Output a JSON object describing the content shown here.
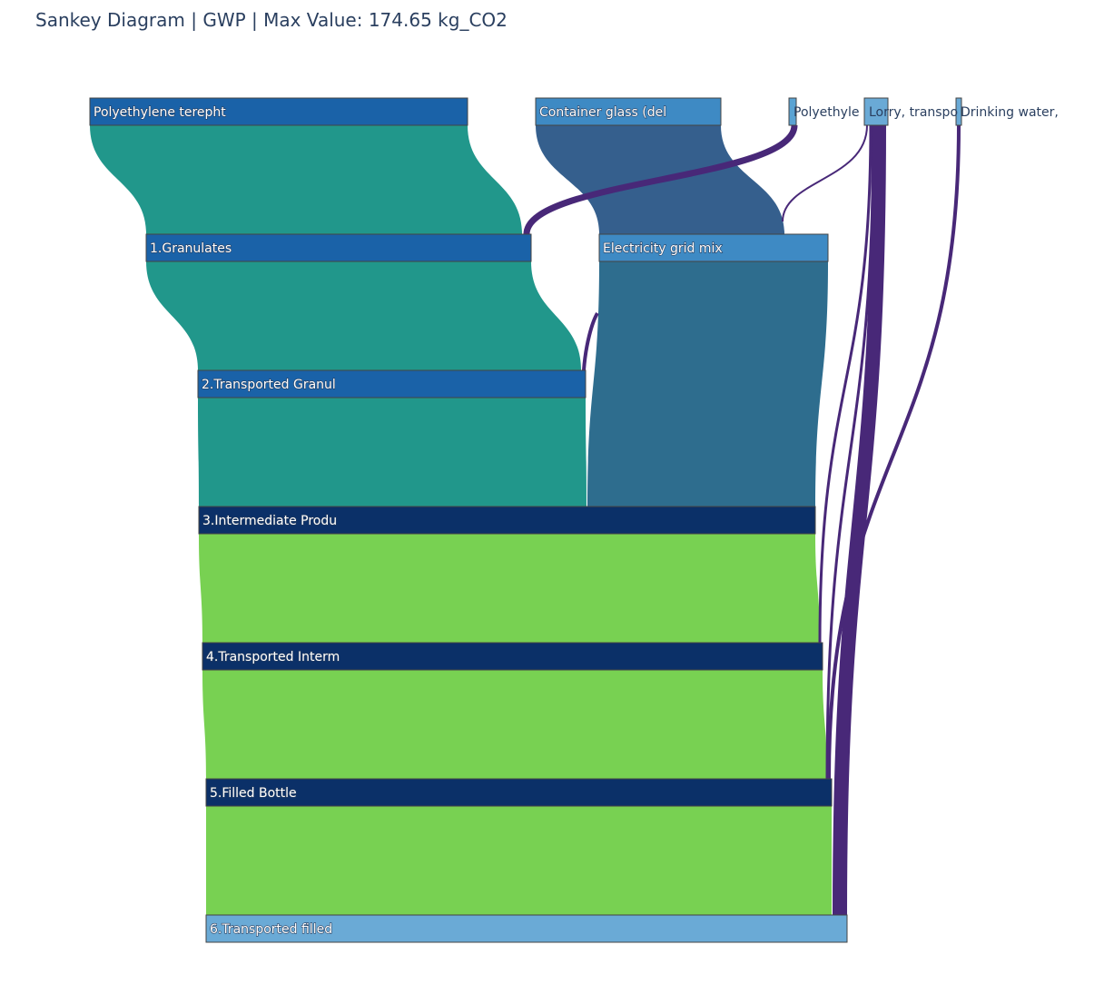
{
  "title": "Sankey Diagram | GWP | Max Value: 174.65 kg_CO2",
  "nodes": [
    {
      "id": "pet",
      "label": "Polyethylene terepht",
      "color": "#1a62a8"
    },
    {
      "id": "glass",
      "label": "Container glass (del",
      "color": "#3e8ac4"
    },
    {
      "id": "pe",
      "label": "Polyethyle",
      "color": "#5aa3d3"
    },
    {
      "id": "lorry",
      "label": "Lorry, transpo",
      "color": "#6aaad6"
    },
    {
      "id": "water",
      "label": "Drinking water,",
      "color": "#6aaad6"
    },
    {
      "id": "gran",
      "label": "1.Granulates",
      "color": "#1a62a8"
    },
    {
      "id": "elec",
      "label": "Electricity grid mix",
      "color": "#3e8ac4"
    },
    {
      "id": "tgran",
      "label": "2.Transported Granul",
      "color": "#1a62a8"
    },
    {
      "id": "inter",
      "label": "3.Intermediate Produ",
      "color": "#0b3068"
    },
    {
      "id": "tinter",
      "label": "4.Transported Interm",
      "color": "#0b3068"
    },
    {
      "id": "filled",
      "label": "5.Filled Bottle",
      "color": "#0b3068"
    },
    {
      "id": "tfilled",
      "label": "6.Transported filled",
      "color": "#6aaad6"
    }
  ],
  "link_colors": {
    "teal": "#21978b",
    "slate": "#355f8d",
    "steel": "#2e6d8e",
    "green": "#78d152",
    "purple": "#482878"
  }
}
